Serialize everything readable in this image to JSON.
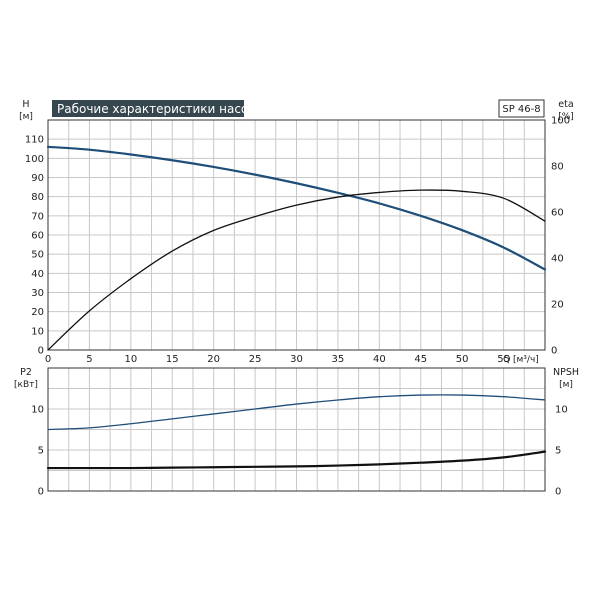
{
  "chart_data": {
    "type": "line",
    "title": "Рабочие характеристики насоса",
    "model": "SP 46-8",
    "colors": {
      "blue": "#1f4e79",
      "black": "#111111",
      "grid": "#c8c8c8",
      "title_bg": "#37474f"
    },
    "x_axis": {
      "label": "Q",
      "unit": "[м³/ч]",
      "range": [
        0,
        60
      ],
      "ticks": [
        0,
        5,
        10,
        15,
        20,
        25,
        30,
        35,
        40,
        45,
        50,
        55
      ]
    },
    "top_panel": {
      "left_axis": {
        "label": "H",
        "unit": "[м]",
        "range": [
          0,
          120
        ],
        "ticks": [
          0,
          10,
          20,
          30,
          40,
          50,
          60,
          70,
          80,
          90,
          100,
          110
        ]
      },
      "right_axis": {
        "label": "eta",
        "unit": "[%]",
        "range": [
          0,
          100
        ],
        "ticks": [
          0,
          20,
          40,
          60,
          80,
          100
        ]
      },
      "series": [
        {
          "name": "H",
          "axis": "left",
          "color": "#1f4e79",
          "x": [
            0,
            5,
            10,
            15,
            20,
            25,
            30,
            35,
            40,
            45,
            50,
            55,
            60
          ],
          "y": [
            106,
            104.5,
            102,
            99,
            95.5,
            91.5,
            87,
            82,
            76.5,
            70,
            62.5,
            53.5,
            42
          ]
        },
        {
          "name": "eta",
          "axis": "right",
          "color": "#111111",
          "x": [
            0,
            5,
            10,
            15,
            20,
            25,
            30,
            35,
            40,
            45,
            50,
            55,
            60
          ],
          "y": [
            0,
            17,
            31,
            43,
            52,
            58,
            63,
            66.5,
            68.5,
            69.5,
            69,
            66,
            56
          ]
        }
      ]
    },
    "bottom_panel": {
      "left_axis": {
        "label": "P2",
        "unit": "[кВт]",
        "range": [
          0,
          15
        ],
        "ticks": [
          0,
          5,
          10
        ]
      },
      "right_axis": {
        "label": "NPSH",
        "unit": "[м]",
        "range": [
          0,
          15
        ],
        "ticks": [
          0,
          5,
          10
        ]
      },
      "series": [
        {
          "name": "P2",
          "axis": "left",
          "color": "#1f4e79",
          "x": [
            0,
            5,
            10,
            15,
            20,
            25,
            30,
            35,
            40,
            45,
            50,
            55,
            60
          ],
          "y": [
            7.5,
            7.7,
            8.2,
            8.8,
            9.4,
            10.0,
            10.6,
            11.1,
            11.5,
            11.7,
            11.7,
            11.5,
            11.1
          ]
        },
        {
          "name": "NPSH",
          "axis": "right",
          "color": "#111111",
          "x": [
            0,
            5,
            10,
            15,
            20,
            25,
            30,
            35,
            40,
            45,
            50,
            55,
            60
          ],
          "y": [
            2.8,
            2.8,
            2.8,
            2.85,
            2.9,
            2.95,
            3.0,
            3.1,
            3.25,
            3.45,
            3.7,
            4.1,
            4.8
          ]
        }
      ]
    }
  }
}
